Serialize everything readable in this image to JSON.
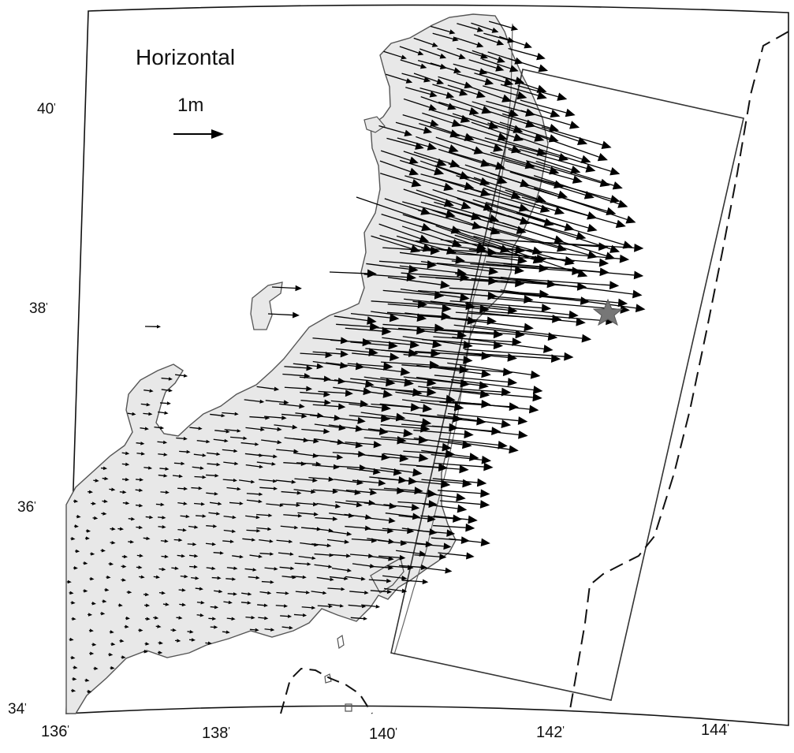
{
  "map": {
    "title": "Horizontal",
    "scale_label": "1m",
    "degree_symbol": "'",
    "latitude_labels": [
      "40",
      "38",
      "36",
      "34"
    ],
    "longitude_labels": [
      "136",
      "138",
      "140",
      "142",
      "144"
    ],
    "extent": {
      "lon": [
        136,
        144.5
      ],
      "lat": [
        34,
        41
      ]
    },
    "colors": {
      "land": "#e8e8e8",
      "coast": "#555555",
      "vector": "#000000",
      "epicenter_star": "#777777",
      "fault_box": "#333333",
      "trench": "#111111"
    },
    "markers": [
      {
        "type": "epicenter-star",
        "lon": 142.7,
        "lat": 38.0
      }
    ],
    "vector_field": "GPS horizontal displacement vectors, scale 1m, increasing toward the northeast coast"
  }
}
